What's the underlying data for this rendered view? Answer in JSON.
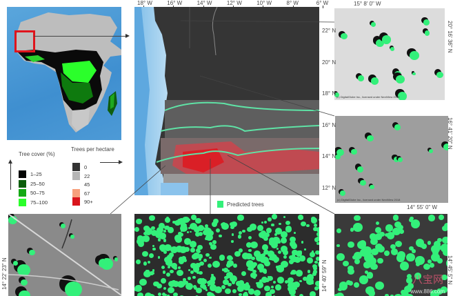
{
  "overview_map": {
    "region": "Africa",
    "highlight_color": "#e0141c"
  },
  "tree_cover_legend": {
    "title": "Tree cover (%)",
    "items": [
      {
        "label": "1–25",
        "color": "#050505"
      },
      {
        "label": "25–50",
        "color": "#0b5d0b"
      },
      {
        "label": "50–75",
        "color": "#14a814"
      },
      {
        "label": "75–100",
        "color": "#2bff2b"
      }
    ]
  },
  "density_legend": {
    "title": "Trees per hectare",
    "items": [
      {
        "label": "0",
        "color": "#333333"
      },
      {
        "label": "22",
        "color": "#b5b5b5"
      },
      {
        "label": "45",
        "color": "#ffffff"
      },
      {
        "label": "67",
        "color": "#f7a07c"
      },
      {
        "label": "90+",
        "color": "#d9141c"
      }
    ]
  },
  "main_map": {
    "lon_labels": [
      "18° W",
      "16° W",
      "14° W",
      "12° W",
      "10° W",
      "8° W",
      "6° W"
    ],
    "lat_labels": [
      "22° N",
      "20° N",
      "18° N",
      "16° N",
      "14° N",
      "12° N"
    ],
    "isoline_color": "#5fe3a6"
  },
  "predicted_legend": {
    "label": "Predicted trees",
    "color": "#33f07a"
  },
  "insets": {
    "top_right": {
      "lon_label": "15° 8' 0\" W",
      "lat_label": "20° 16' 36\" N",
      "credit": "(c) DigitalGlobe Inc., licensed under NextView 2018"
    },
    "middle_right": {
      "lon_label": "14° 55' 0\" W",
      "lat_label": "16° 41' 20\" N",
      "credit": "(c) DigitalGlobe Inc., licensed under NextView 2018"
    },
    "bottom_left": {
      "lat_label": "14° 22' 23\" N"
    },
    "bottom_middle": {
      "lat_label": "14° 40' 59\" N"
    },
    "bottom_right": {
      "lat_label": "14° 45' 5\" N"
    }
  },
  "watermark": {
    "text": "八宝网",
    "url_text": "www.886.com"
  }
}
